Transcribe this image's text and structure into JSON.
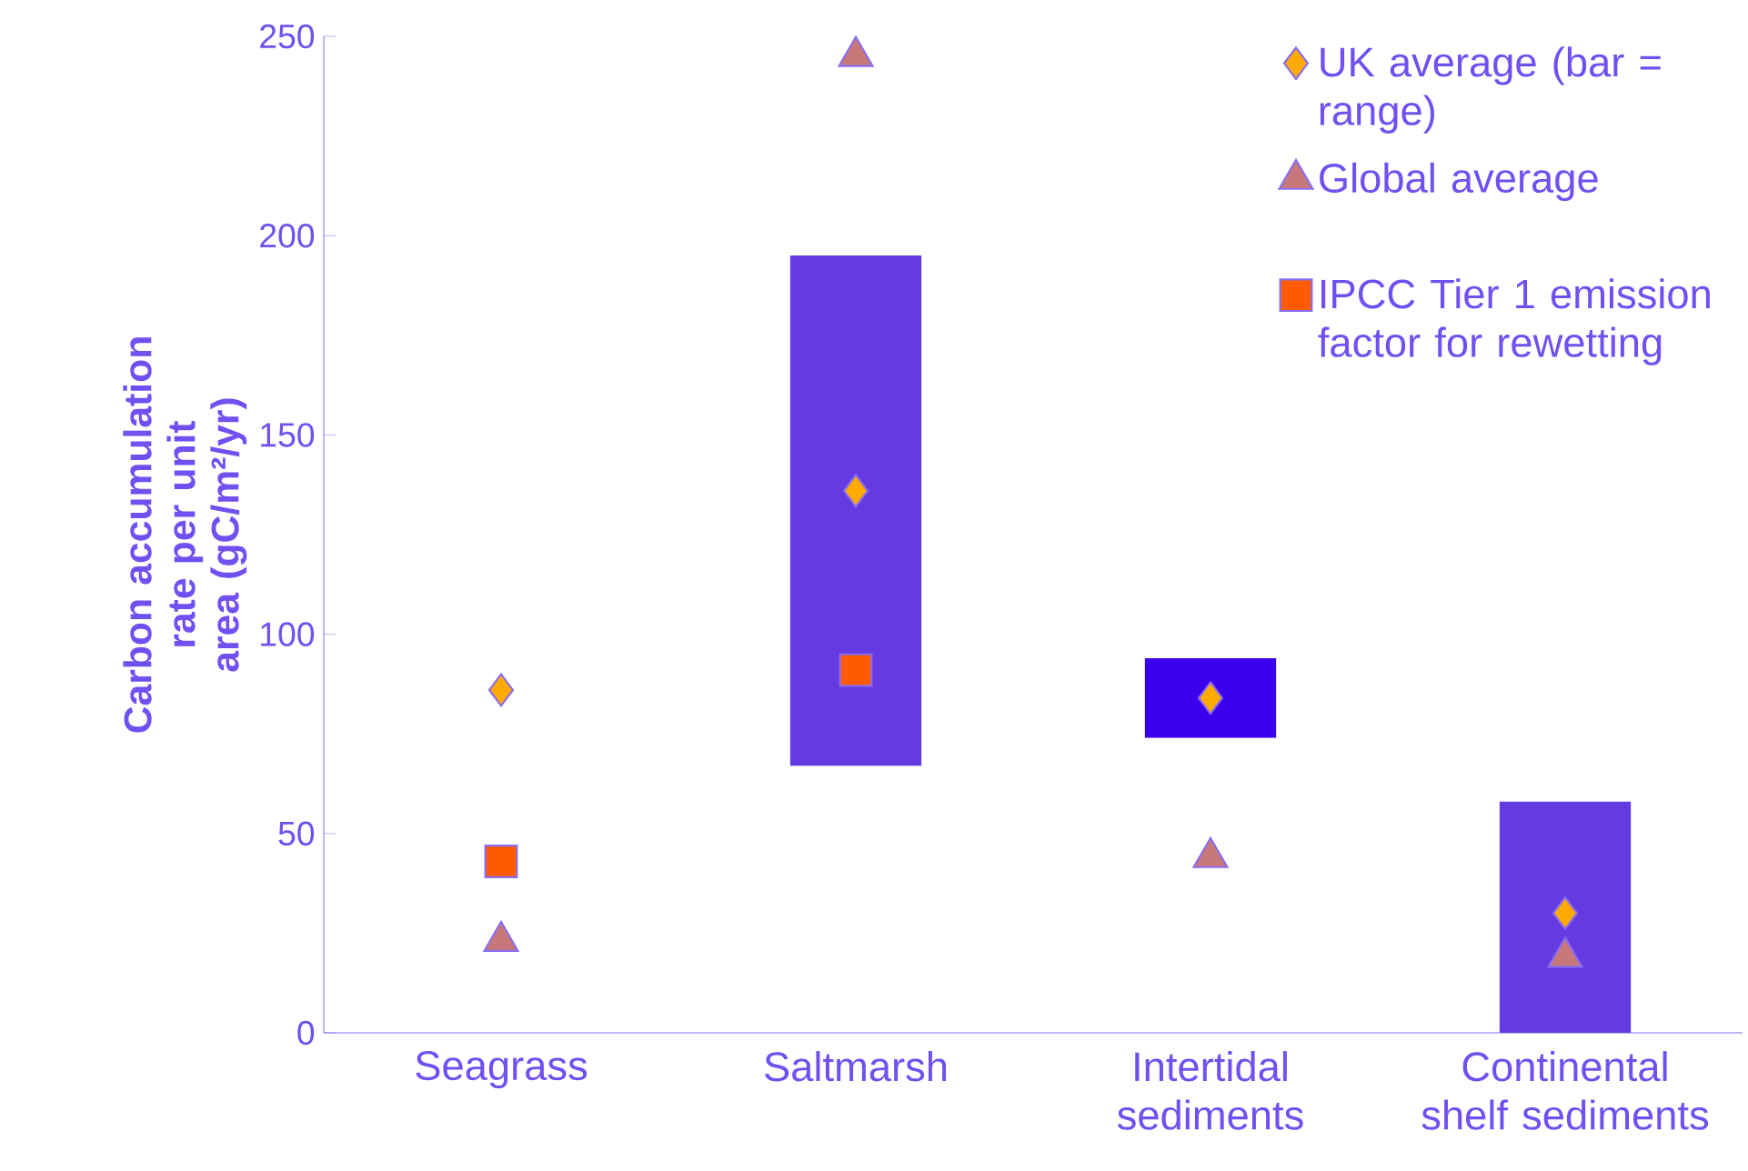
{
  "chart_data": {
    "type": "bar",
    "ylabel": "Carbon accumulation rate per unit area (gC/m²/yr)",
    "categories": [
      "Seagrass",
      "Saltmarsh",
      "Intertidal sediments",
      "Continental shelf sediments"
    ],
    "series": [
      {
        "colors": [
          "#633be1",
          "#633be1",
          "#3a00ee",
          "#633be1"
        ],
        "base": [
          null,
          67,
          74,
          0
        ],
        "values": [
          null,
          128,
          20,
          58
        ]
      },
      {
        "type": "scatter",
        "name": "UK average (bar = range)",
        "marker": "diamond",
        "color": "#ffaa00",
        "values": [
          86,
          136,
          84,
          30
        ]
      },
      {
        "type": "scatter",
        "name": "Global average",
        "marker": "triangle",
        "color": "#c87878",
        "values": [
          23,
          245,
          44,
          19
        ]
      },
      {
        "type": "scatter",
        "name": "IPCC Tier 1 emission factor for rewetting",
        "marker": "square",
        "color": "#ff5a00",
        "values": [
          43,
          91,
          null,
          null
        ]
      }
    ],
    "ylim": [
      0,
      250
    ],
    "yticks": [
      0,
      50,
      100,
      150,
      200,
      250
    ],
    "legend": "top right"
  }
}
